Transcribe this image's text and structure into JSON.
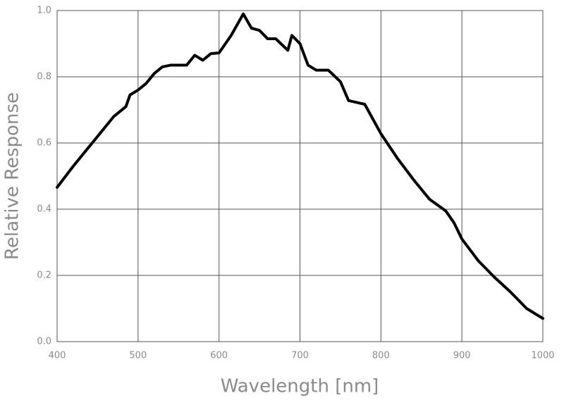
{
  "chart_data": {
    "type": "line",
    "x_label": "Wavelength [nm]",
    "y_label": "Relative Response",
    "x": [
      400,
      420,
      440,
      460,
      470,
      485,
      490,
      500,
      510,
      520,
      530,
      540,
      560,
      570,
      580,
      590,
      600,
      615,
      630,
      640,
      650,
      660,
      670,
      685,
      690,
      700,
      710,
      720,
      735,
      750,
      760,
      780,
      800,
      820,
      840,
      860,
      880,
      890,
      900,
      920,
      940,
      960,
      980,
      1000
    ],
    "series": [
      {
        "color": "#000000",
        "values": [
          0.466,
          0.53,
          0.59,
          0.65,
          0.68,
          0.71,
          0.745,
          0.76,
          0.78,
          0.81,
          0.83,
          0.835,
          0.835,
          0.865,
          0.85,
          0.87,
          0.872,
          0.925,
          0.99,
          0.947,
          0.94,
          0.915,
          0.915,
          0.88,
          0.925,
          0.9,
          0.835,
          0.82,
          0.82,
          0.785,
          0.728,
          0.717,
          0.628,
          0.555,
          0.49,
          0.43,
          0.395,
          0.36,
          0.31,
          0.245,
          0.195,
          0.15,
          0.1,
          0.07
        ]
      }
    ],
    "xlim": [
      400,
      1000
    ],
    "ylim": [
      0,
      1
    ],
    "xticks": [
      400,
      500,
      600,
      700,
      800,
      900,
      1000
    ],
    "yticks": [
      {
        "value": 0,
        "label": "0.0"
      },
      0.2,
      0.4,
      0.6,
      0.8,
      {
        "value": 1,
        "label": "1.0"
      }
    ],
    "grid": true
  }
}
